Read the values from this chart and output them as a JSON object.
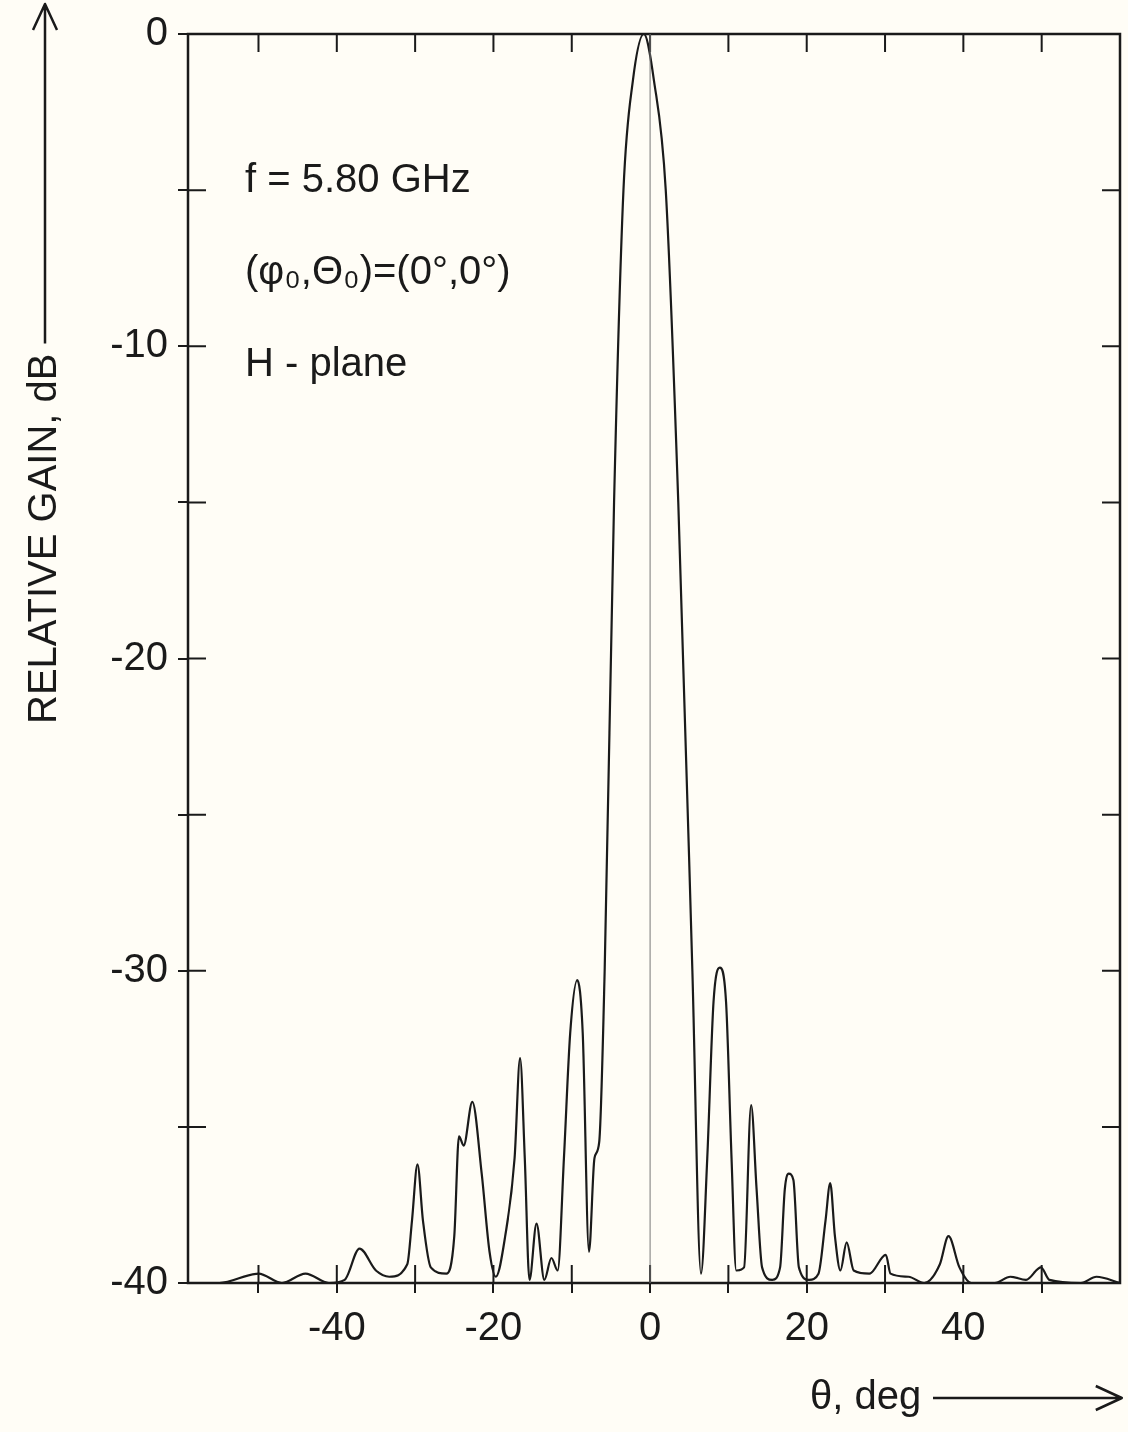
{
  "chart_data": {
    "type": "line",
    "xlabel": "θ, deg",
    "ylabel": "RELATIVE GAIN, dB",
    "annotations": [
      "f = 5.80 GHz",
      "(φ₀,Θ₀)=(0°,0°)",
      "H - plane"
    ],
    "x": [
      -59,
      -55,
      -50,
      -47,
      -44,
      -41,
      -39,
      -37.1,
      -35,
      -33.3,
      -31,
      -30.4,
      -29.7,
      -29,
      -28,
      -26,
      -25,
      -24.4,
      -23.8,
      -22.7,
      -21.5,
      -20.5,
      -19.7,
      -18.5,
      -17.3,
      -16.6,
      -16,
      -15.4,
      -14.5,
      -13.5,
      -12.6,
      -11.8,
      -11,
      -10.2,
      -9.3,
      -8.6,
      -7.8,
      -7.1,
      -6.5,
      -5.8,
      -4.6,
      -3.4,
      -2.2,
      -0.8,
      0.5,
      2,
      3.6,
      5.4,
      6.5,
      7.3,
      8.1,
      8.9,
      9.7,
      10.4,
      11,
      12,
      12.9,
      13.6,
      14.3,
      15.6,
      16.6,
      17.2,
      17.7,
      18.3,
      19,
      20.3,
      21.5,
      22.4,
      23,
      23.6,
      24.3,
      25.1,
      26,
      28,
      30.1,
      30.7,
      33,
      35,
      37,
      38.1,
      39.5,
      41,
      44,
      46,
      48,
      49.9,
      51,
      55,
      57,
      60
    ],
    "series": [
      {
        "color": "#1a1a1a",
        "values": [
          -40,
          -40,
          -39.7,
          -40,
          -39.7,
          -40,
          -39.9,
          -38.9,
          -39.6,
          -39.8,
          -39.4,
          -38,
          -36.2,
          -38,
          -39.5,
          -39.7,
          -38.5,
          -35.3,
          -35.6,
          -34.2,
          -36.5,
          -39,
          -39.8,
          -38.5,
          -36,
          -32.8,
          -36,
          -39.9,
          -38.1,
          -39.9,
          -39.2,
          -39.6,
          -36,
          -32,
          -30.3,
          -32,
          -39,
          -36,
          -35.5,
          -30,
          -15,
          -5,
          -1.5,
          0,
          -1.5,
          -5,
          -15,
          -30,
          -39.7,
          -36,
          -31,
          -29.9,
          -31,
          -36,
          -39.6,
          -39.5,
          -34.3,
          -37,
          -39.5,
          -39.9,
          -39.5,
          -37,
          -36.5,
          -36.7,
          -39.5,
          -39.9,
          -39.7,
          -38,
          -36.8,
          -38.5,
          -39.6,
          -38.7,
          -39.6,
          -39.7,
          -39.1,
          -39.7,
          -39.8,
          -40,
          -39.4,
          -38.5,
          -39.5,
          -40,
          -40,
          -39.8,
          -39.9,
          -39.5,
          -39.9,
          -40,
          -39.8,
          -40
        ]
      }
    ],
    "xlim": [
      -59,
      60
    ],
    "ylim": [
      -40,
      0
    ],
    "xticks": [
      {
        "value": -50,
        "label": null
      },
      -40,
      {
        "value": -30,
        "label": null
      },
      -20,
      {
        "value": -10,
        "label": null
      },
      0,
      {
        "value": 10,
        "label": null
      },
      20,
      {
        "value": 30,
        "label": null
      },
      40,
      {
        "value": 50,
        "label": null
      }
    ],
    "yticks": [
      -40,
      {
        "value": -35,
        "label": null
      },
      -30,
      {
        "value": -25,
        "label": null
      },
      -20,
      {
        "value": -15,
        "label": null
      },
      -10,
      {
        "value": -5,
        "label": null
      },
      0
    ],
    "ref_lines": [
      {
        "axis": "x",
        "value": 0
      }
    ],
    "marker": "none",
    "line_style": "solid"
  }
}
